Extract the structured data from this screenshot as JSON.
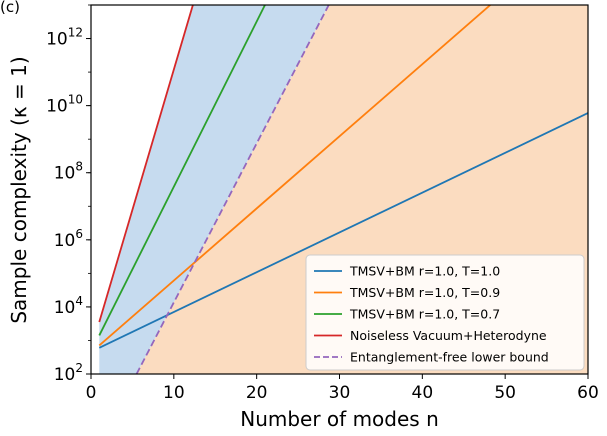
{
  "chart_data": {
    "type": "line",
    "panel_label": "(c)",
    "xlabel": "Number of modes n",
    "ylabel": "Sample complexity (κ = 1)",
    "xlim": [
      0,
      60
    ],
    "ylim_log10": [
      2,
      13
    ],
    "yscale": "log",
    "x_ticks": [
      0,
      10,
      20,
      30,
      40,
      50,
      60
    ],
    "y_ticks": [
      {
        "exp": 2,
        "base": "10",
        "sup": "2"
      },
      {
        "exp": 4,
        "base": "10",
        "sup": "4"
      },
      {
        "exp": 6,
        "base": "10",
        "sup": "6"
      },
      {
        "exp": 8,
        "base": "10",
        "sup": "8"
      },
      {
        "exp": 10,
        "base": "10",
        "sup": "10"
      },
      {
        "exp": 12,
        "base": "10",
        "sup": "12"
      }
    ],
    "series": [
      {
        "name": "TMSV+BM r=1.0, T=1.0",
        "color": "#1f77b4",
        "dash": false,
        "x": [
          1,
          60
        ],
        "log10_y": [
          2.78,
          9.78
        ]
      },
      {
        "name": "TMSV+BM r=1.0, T=0.9",
        "color": "#ff7f0e",
        "dash": false,
        "x": [
          1,
          48.2
        ],
        "log10_y": [
          2.85,
          13.0
        ]
      },
      {
        "name": "TMSV+BM r=1.0, T=0.7",
        "color": "#2ca02c",
        "dash": false,
        "x": [
          1,
          21.0
        ],
        "log10_y": [
          3.15,
          13.0
        ]
      },
      {
        "name": "Noiseless Vacuum+Heterodyne",
        "color": "#d62728",
        "dash": false,
        "x": [
          1,
          12.3
        ],
        "log10_y": [
          3.55,
          13.0
        ]
      },
      {
        "name": "Entanglement-free lower bound",
        "color": "#9467bd",
        "dash": true,
        "x": [
          5.5,
          28.7
        ],
        "log10_y": [
          2.0,
          13.0
        ]
      }
    ],
    "shaded_regions": [
      {
        "name": "blue-region",
        "color": "#c6dbef",
        "between": [
          "Noiseless Vacuum+Heterodyne",
          "Entanglement-free lower bound"
        ]
      },
      {
        "name": "orange-region",
        "color": "#fbdcc0",
        "between": [
          "Entanglement-free lower bound",
          "x_axis"
        ]
      }
    ],
    "legend_position": "lower-right"
  }
}
